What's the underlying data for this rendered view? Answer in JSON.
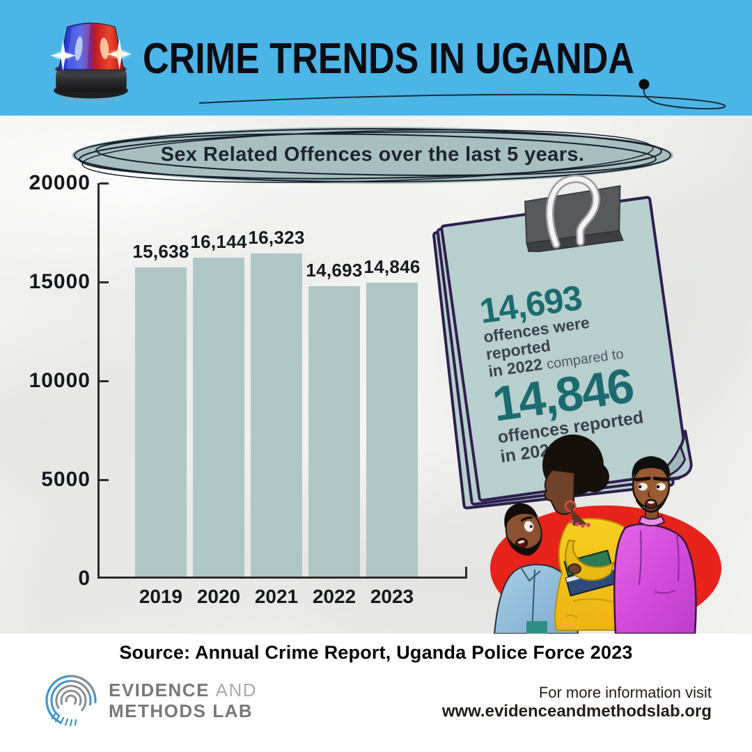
{
  "header": {
    "title": "CRIME TRENDS IN UGANDA",
    "siren_icon": "police-siren-icon",
    "bg_color": "#4cb5e8"
  },
  "subtitle_banner": {
    "text": "Sex Related Offences over the last 5 years.",
    "fill_color": "#a7c0bf"
  },
  "chart_data": {
    "type": "bar",
    "title": "Sex Related Offences over the last 5 years.",
    "categories": [
      "2019",
      "2020",
      "2021",
      "2022",
      "2023"
    ],
    "values": [
      15638,
      16144,
      16323,
      14693,
      14846
    ],
    "value_labels": [
      "15,638",
      "16,144",
      "16,323",
      "14,693",
      "14,846"
    ],
    "xlabel": "",
    "ylabel": "",
    "ylim": [
      0,
      20000
    ],
    "yticks": [
      0,
      5000,
      10000,
      15000,
      20000
    ],
    "ytick_labels": [
      "0",
      "5000",
      "10000",
      "15000",
      "20000"
    ],
    "grid": false,
    "legend": false,
    "bar_color": "#aec6c6"
  },
  "note_card": {
    "stat_2022": "14,693",
    "line_2022_a": "offences were reported",
    "line_2022_b": "in 2022",
    "compared": "compared to",
    "stat_2023": "14,846",
    "line_2023_a": "offences reported",
    "line_2023_b": "in 2023",
    "card_color": "#b7cfce",
    "outline_color": "#2e1f4e",
    "stat_color": "#1b6b70"
  },
  "source_line": "Source: Annual Crime Report, Uganda Police Force 2023",
  "footer": {
    "logo": {
      "icon": "fingerprint-icon",
      "word1": "EVIDENCE",
      "word2": "AND",
      "line2": "METHODS LAB",
      "blue": "#4095d1",
      "gray": "#8b8d90"
    },
    "info_line1": "For more information visit",
    "info_line2": "www.evidenceandmethodslab.org"
  },
  "illustration_accent_color": "#e8231a"
}
